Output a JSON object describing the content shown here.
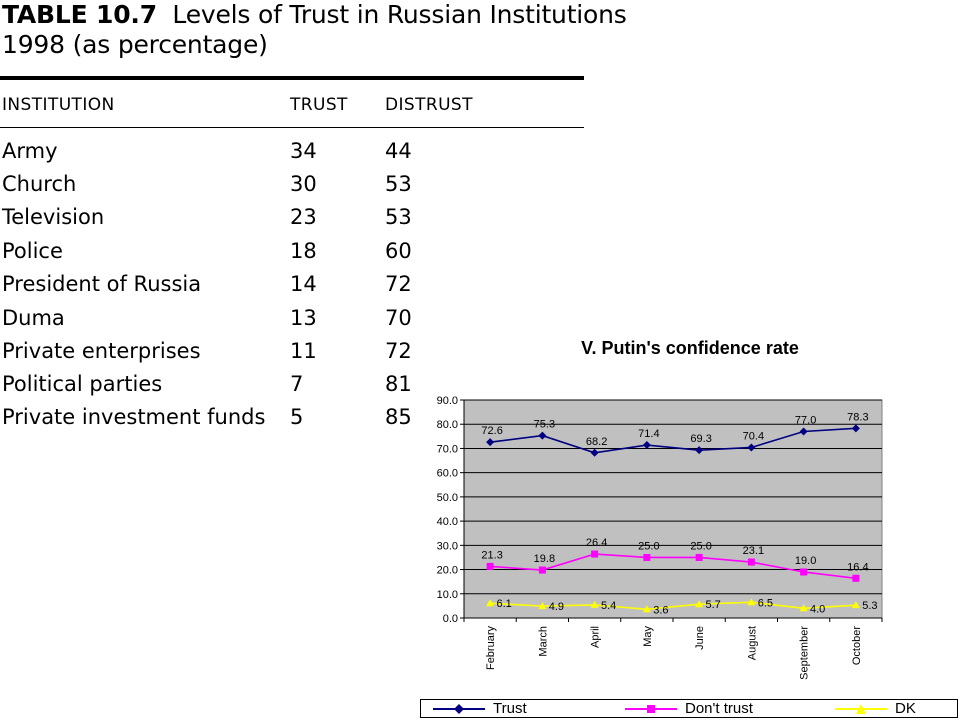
{
  "table": {
    "title_number": "TABLE 10.7",
    "title_text_line1": "Levels of Trust in Russian Institutions",
    "title_text_line2": "1998 (as percentage)",
    "columns": {
      "institution": "INSTITUTION",
      "trust": "TRUST",
      "distrust": "DISTRUST"
    },
    "rows": [
      {
        "name": "Army",
        "trust": "34",
        "distrust": "44"
      },
      {
        "name": "Church",
        "trust": "30",
        "distrust": "53"
      },
      {
        "name": "Television",
        "trust": "23",
        "distrust": "53"
      },
      {
        "name": "Police",
        "trust": "18",
        "distrust": "60"
      },
      {
        "name": "President of Russia",
        "trust": "14",
        "distrust": "72"
      },
      {
        "name": "Duma",
        "trust": "13",
        "distrust": "70"
      },
      {
        "name": "Private enterprises",
        "trust": "11",
        "distrust": "72"
      },
      {
        "name": "Political parties",
        "trust": "7",
        "distrust": "81"
      },
      {
        "name": "Private investment funds",
        "trust": "5",
        "distrust": "85"
      }
    ]
  },
  "chart_data": {
    "type": "line",
    "title": "V. Putin's confidence rate",
    "categories": [
      "February",
      "March",
      "April",
      "May",
      "June",
      "August",
      "September",
      "October"
    ],
    "ylim": [
      0,
      90
    ],
    "yticks": [
      "0.0",
      "10.0",
      "20.0",
      "30.0",
      "40.0",
      "50.0",
      "60.0",
      "70.0",
      "80.0",
      "90.0"
    ],
    "grid": true,
    "legend_position": "bottom",
    "plot_background": "#c0c0c0",
    "series": [
      {
        "name": "Trust",
        "color": "#000080",
        "marker": "diamond",
        "values": [
          72.6,
          75.3,
          68.2,
          71.4,
          69.3,
          70.4,
          77.0,
          78.3
        ],
        "labels": [
          "72.6",
          "75.3",
          "68.2",
          "71.4",
          "69.3",
          "70.4",
          "77.0",
          "78.3"
        ]
      },
      {
        "name": "Don't trust",
        "color": "#ff00ff",
        "marker": "square",
        "values": [
          21.3,
          19.8,
          26.4,
          25.0,
          25.0,
          23.1,
          19.0,
          16.4
        ],
        "labels": [
          "21.3",
          "19.8",
          "26.4",
          "25.0",
          "25.0",
          "23.1",
          "19.0",
          "16.4"
        ]
      },
      {
        "name": "DK",
        "color": "#ffff00",
        "marker": "triangle",
        "values": [
          6.1,
          4.9,
          5.4,
          3.6,
          5.7,
          6.5,
          4.0,
          5.3
        ],
        "labels": [
          "6.1",
          "4.9",
          "5.4",
          "3.6",
          "5.7",
          "6.5",
          "4.0",
          "5.3"
        ]
      }
    ]
  }
}
